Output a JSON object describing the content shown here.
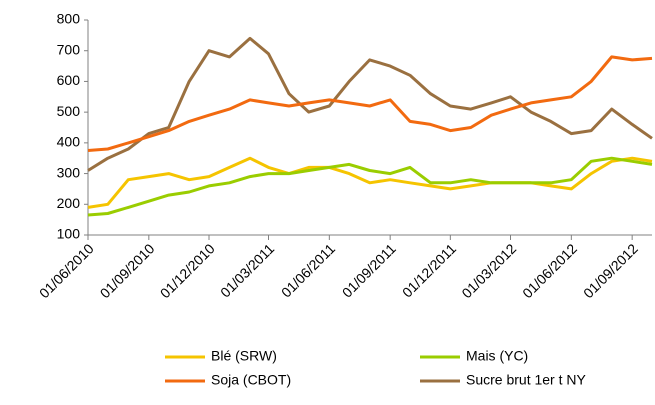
{
  "chart_data": {
    "type": "line",
    "x": [
      "01/06/2010",
      "01/07/2010",
      "01/08/2010",
      "01/09/2010",
      "01/10/2010",
      "01/11/2010",
      "01/12/2010",
      "01/01/2011",
      "01/02/2011",
      "01/03/2011",
      "01/04/2011",
      "01/05/2011",
      "01/06/2011",
      "01/07/2011",
      "01/08/2011",
      "01/09/2011",
      "01/10/2011",
      "01/11/2011",
      "01/12/2011",
      "01/01/2012",
      "01/02/2012",
      "01/03/2012",
      "01/04/2012",
      "01/05/2012",
      "01/06/2012",
      "01/07/2012",
      "01/08/2012",
      "01/09/2012",
      "01/10/2012"
    ],
    "series": [
      {
        "name": "Blé (SRW)",
        "color": "#f5c400",
        "values": [
          190,
          200,
          280,
          290,
          300,
          280,
          290,
          320,
          350,
          320,
          300,
          320,
          320,
          300,
          270,
          280,
          270,
          260,
          250,
          260,
          270,
          270,
          270,
          260,
          250,
          300,
          340,
          350,
          340
        ]
      },
      {
        "name": "Mais (YC)",
        "color": "#9acd00",
        "values": [
          165,
          170,
          190,
          210,
          230,
          240,
          260,
          270,
          290,
          300,
          300,
          310,
          320,
          330,
          310,
          300,
          320,
          270,
          270,
          280,
          270,
          270,
          270,
          270,
          280,
          340,
          350,
          340,
          330
        ]
      },
      {
        "name": "Soja (CBOT)",
        "color": "#f26a10",
        "values": [
          375,
          380,
          400,
          420,
          440,
          470,
          490,
          510,
          540,
          530,
          520,
          530,
          540,
          530,
          520,
          540,
          470,
          460,
          440,
          450,
          490,
          510,
          530,
          540,
          550,
          600,
          680,
          670,
          675
        ]
      },
      {
        "name": "Sucre brut 1er t NY",
        "color": "#9a7040",
        "values": [
          310,
          350,
          380,
          430,
          450,
          600,
          700,
          680,
          740,
          690,
          560,
          500,
          520,
          600,
          670,
          650,
          620,
          560,
          520,
          510,
          530,
          550,
          500,
          470,
          430,
          440,
          510,
          460,
          415
        ]
      }
    ],
    "xlim": [
      "01/06/2010",
      "01/10/2012"
    ],
    "xticks": [
      "01/06/2010",
      "01/09/2010",
      "01/12/2010",
      "01/03/2011",
      "01/06/2011",
      "01/09/2011",
      "01/12/2011",
      "01/03/2012",
      "01/06/2012",
      "01/09/2012"
    ],
    "ylim": [
      100,
      800
    ],
    "yticks": [
      100,
      200,
      300,
      400,
      500,
      600,
      700,
      800
    ],
    "legend": "bottom"
  }
}
